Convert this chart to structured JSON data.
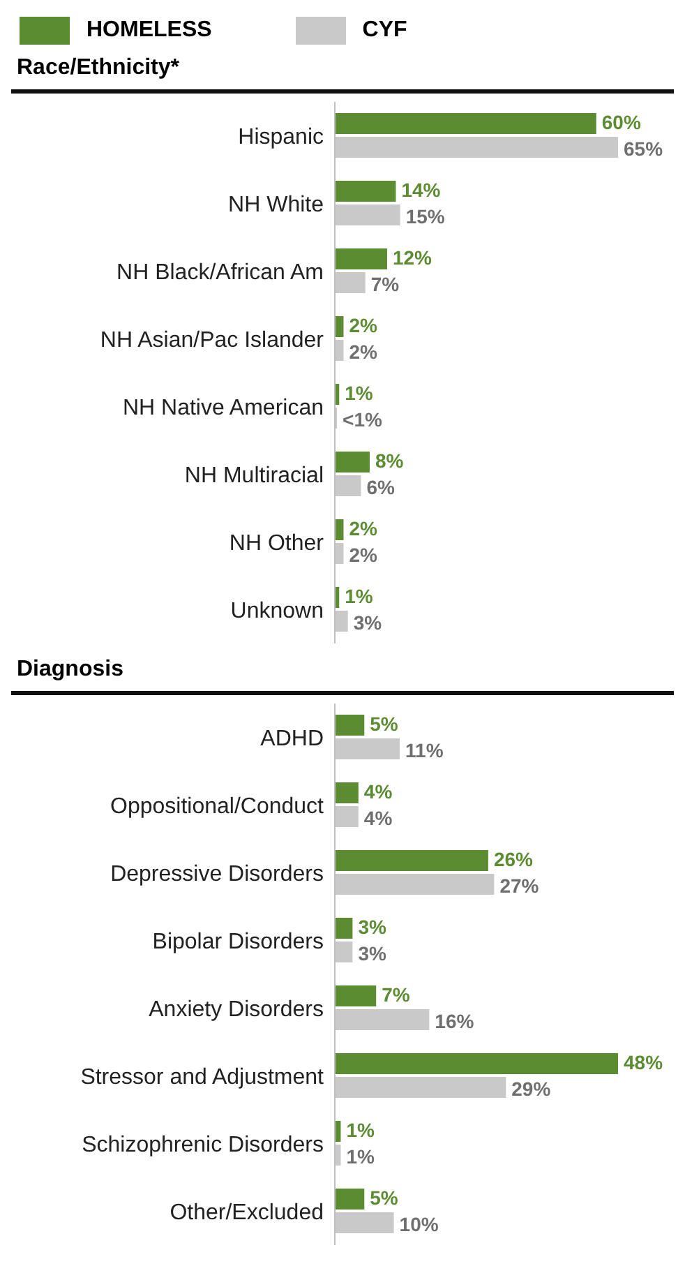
{
  "chart_data": [
    {
      "type": "bar",
      "orientation": "horizontal",
      "title": "Race/Ethnicity*",
      "legend": "top left",
      "categories": [
        "Hispanic",
        "NH White",
        "NH Black/African Am",
        "NH Asian/Pac Islander",
        "NH Native American",
        "NH Multiracial",
        "NH Other",
        "Unknown"
      ],
      "series": [
        {
          "name": "HOMELESS",
          "color": "#5b8c32",
          "values": [
            60,
            14,
            12,
            2,
            1,
            8,
            2,
            1
          ],
          "value_labels": [
            "60%",
            "14%",
            "12%",
            "2%",
            "1%",
            "8%",
            "2%",
            "1%"
          ]
        },
        {
          "name": "CYF",
          "color": "#c9c9c9",
          "values": [
            65,
            15,
            7,
            2,
            0.5,
            6,
            2,
            3
          ],
          "value_labels": [
            "65%",
            "15%",
            "7%",
            "2%",
            "<1%",
            "6%",
            "2%",
            "3%"
          ]
        }
      ]
    },
    {
      "type": "bar",
      "orientation": "horizontal",
      "title": "Diagnosis",
      "categories": [
        "ADHD",
        "Oppositional/Conduct",
        "Depressive Disorders",
        "Bipolar Disorders",
        "Anxiety Disorders",
        "Stressor and Adjustment",
        "Schizophrenic Disorders",
        "Other/Excluded"
      ],
      "series": [
        {
          "color": "#5b8c32",
          "values": [
            5,
            4,
            26,
            3,
            7,
            48,
            1,
            5
          ],
          "value_labels": [
            "5%",
            "4%",
            "26%",
            "3%",
            "7%",
            "48%",
            "1%",
            "5%"
          ]
        },
        {
          "color": "#c9c9c9",
          "values": [
            11,
            4,
            27,
            3,
            16,
            29,
            1,
            10
          ],
          "value_labels": [
            "11%",
            "4%",
            "27%",
            "3%",
            "16%",
            "29%",
            "1%",
            "10%"
          ]
        }
      ]
    }
  ]
}
